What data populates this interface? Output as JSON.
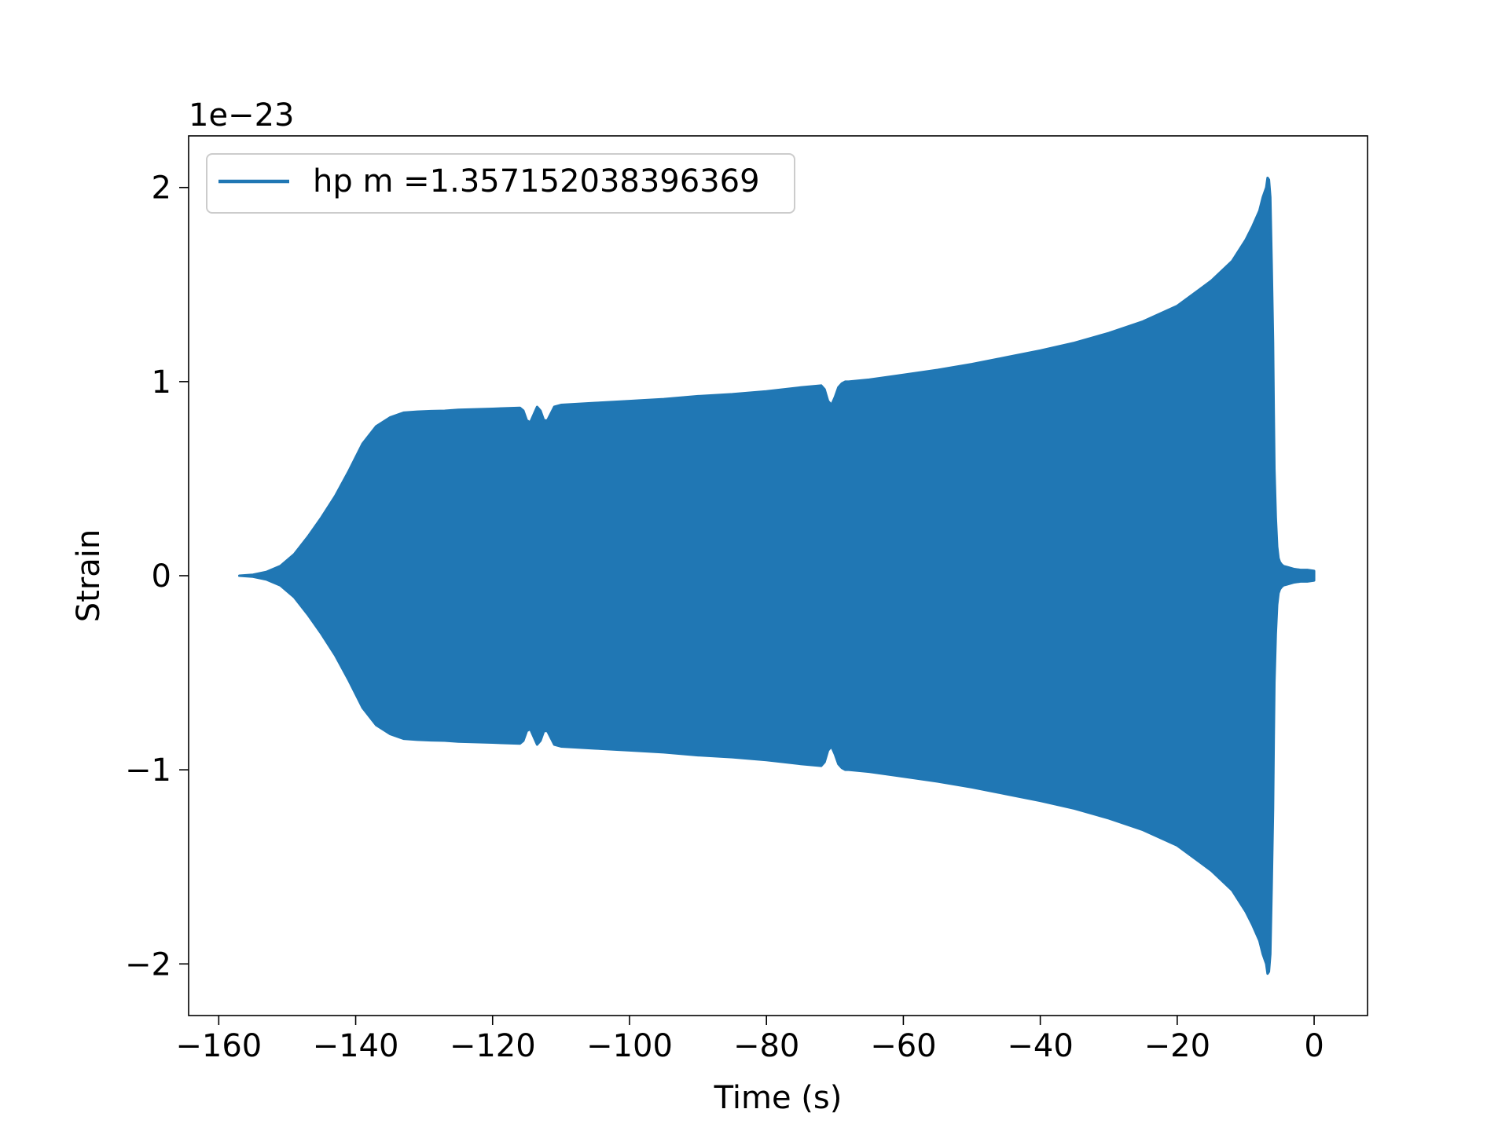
{
  "chart_data": {
    "type": "area",
    "title": "",
    "xlabel": "Time (s)",
    "ylabel": "Strain",
    "scale_label": "1e−23",
    "xlim": [
      -164.4,
      7.8
    ],
    "ylim": [
      -2.266,
      2.266
    ],
    "grid": false,
    "legend_position": "top-left",
    "x_ticks": [
      -160,
      -140,
      -120,
      -100,
      -80,
      -60,
      -40,
      -20,
      0
    ],
    "x_tick_labels": [
      "−160",
      "−140",
      "−120",
      "−100",
      "−80",
      "−60",
      "−40",
      "−20",
      "0"
    ],
    "y_ticks": [
      2,
      1,
      0,
      -1,
      -2
    ],
    "y_tick_labels": [
      "2",
      "1",
      "0",
      "−1",
      "−2"
    ],
    "series": [
      {
        "name": "hp m =1.357152038396369",
        "color": "#2077b4",
        "kind": "oscillating-envelope",
        "envelope_x": [
          -157,
          -155,
          -153,
          -151,
          -149,
          -147,
          -145,
          -143,
          -141,
          -139,
          -137,
          -135,
          -133,
          -131,
          -129,
          -127,
          -125,
          -120,
          -116,
          -115.5,
          -115,
          -114.5,
          -114,
          -113.5,
          -113,
          -112.5,
          -112,
          -111,
          -110,
          -105,
          -100,
          -95,
          -90,
          -85,
          -80,
          -75,
          -72,
          -71.5,
          -71,
          -70.5,
          -70,
          -69.5,
          -69,
          -68.5,
          -68,
          -65,
          -60,
          -55,
          -50,
          -45,
          -40,
          -35,
          -30,
          -25,
          -20,
          -15,
          -12,
          -10,
          -9,
          -8,
          -7.5,
          -7,
          -6.8,
          -6.6,
          -6.4,
          -6.2,
          -6.0,
          -5.9,
          -5.8,
          -5.6,
          -5.4,
          -5.2,
          -5.0,
          -4.8,
          -4.5,
          -4.0,
          -3.5,
          -3.0,
          -2.0,
          -1.0,
          0.0
        ],
        "envelope_y": [
          0.0,
          0.005,
          0.02,
          0.05,
          0.11,
          0.2,
          0.3,
          0.41,
          0.54,
          0.68,
          0.77,
          0.815,
          0.84,
          0.845,
          0.848,
          0.85,
          0.855,
          0.86,
          0.865,
          0.85,
          0.8,
          0.79,
          0.83,
          0.87,
          0.85,
          0.8,
          0.8,
          0.87,
          0.88,
          0.89,
          0.9,
          0.91,
          0.925,
          0.935,
          0.95,
          0.97,
          0.98,
          0.96,
          0.9,
          0.88,
          0.92,
          0.97,
          0.99,
          1.0,
          1.0,
          1.01,
          1.035,
          1.06,
          1.09,
          1.125,
          1.16,
          1.2,
          1.25,
          1.31,
          1.39,
          1.52,
          1.62,
          1.73,
          1.8,
          1.88,
          1.95,
          2.0,
          2.05,
          2.04,
          1.95,
          1.6,
          1.2,
          0.85,
          0.55,
          0.3,
          0.15,
          0.09,
          0.07,
          0.06,
          0.05,
          0.045,
          0.04,
          0.035,
          0.03,
          0.03,
          0.025,
          0.02,
          0.0
        ]
      }
    ]
  }
}
